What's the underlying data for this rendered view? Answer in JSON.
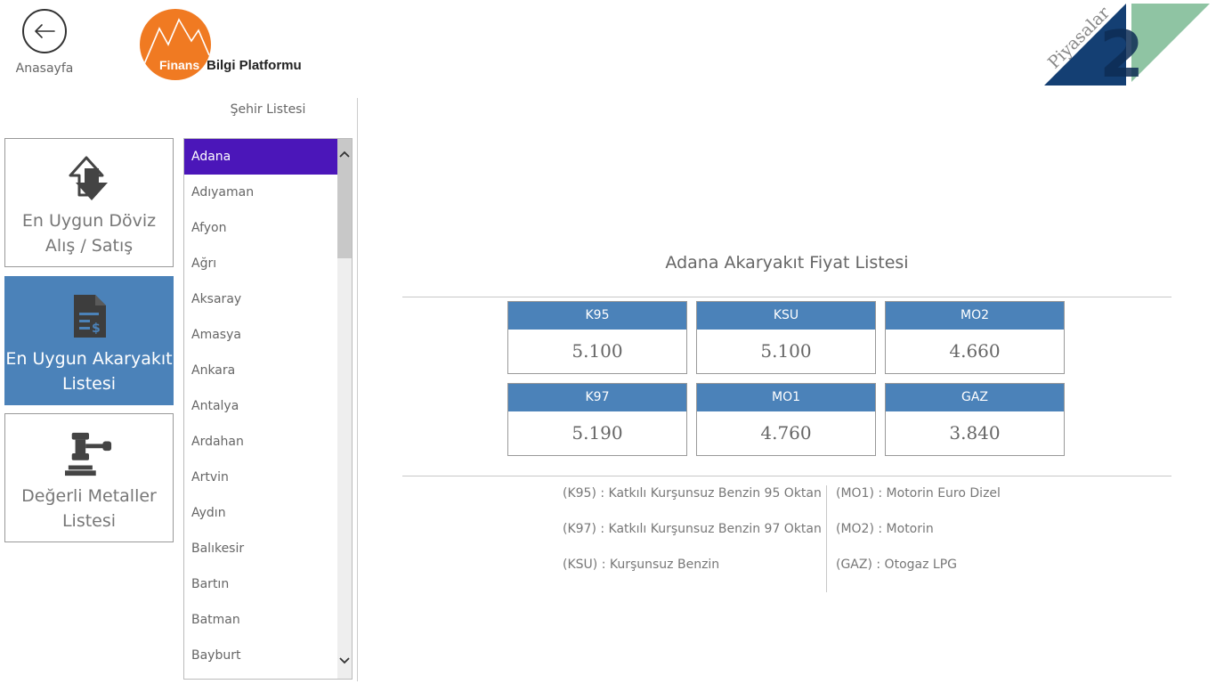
{
  "header": {
    "back_label": "Anasayfa",
    "logo": {
      "primary": "Finans",
      "secondary": "Bilgi Platformu"
    },
    "brand_text": "Piyasalar",
    "brand_number": "2"
  },
  "nav": [
    {
      "label": "En Uygun Döviz\nAlış / Satış",
      "icon": "currency-exchange-icon",
      "active": false
    },
    {
      "label": "En Uygun Akaryakıt\nListesi",
      "icon": "fuel-document-icon",
      "active": true
    },
    {
      "label": "Değerli Metaller\nListesi",
      "icon": "gavel-icon",
      "active": false
    }
  ],
  "city_list": {
    "header": "Şehir Listesi",
    "selected": "Adana",
    "items": [
      "Adana",
      "Adıyaman",
      "Afyon",
      "Ağrı",
      "Aksaray",
      "Amasya",
      "Ankara",
      "Antalya",
      "Ardahan",
      "Artvin",
      "Aydın",
      "Balıkesir",
      "Bartın",
      "Batman",
      "Bayburt"
    ]
  },
  "main": {
    "title": "Adana Akaryakıt Fiyat Listesi",
    "prices": [
      {
        "code": "K95",
        "value": "5.100"
      },
      {
        "code": "KSU",
        "value": "5.100"
      },
      {
        "code": "MO2",
        "value": "4.660"
      },
      {
        "code": "K97",
        "value": "5.190"
      },
      {
        "code": "MO1",
        "value": "4.760"
      },
      {
        "code": "GAZ",
        "value": "3.840"
      }
    ],
    "legend_left": [
      "(K95) : Katkılı Kurşunsuz Benzin 95 Oktan",
      "(K97) : Katkılı Kurşunsuz Benzin 97 Oktan",
      "(KSU) : Kurşunsuz Benzin"
    ],
    "legend_right": [
      "(MO1) : Motorin Euro Dizel",
      "(MO2) : Motorin",
      "(GAZ) : Otogaz LPG"
    ]
  },
  "colors": {
    "accent": "#4b82b9",
    "selection": "#4b16b9",
    "logo_orange": "#f07a22",
    "brand_dark": "#143f73",
    "brand_green": "#8fc4a3"
  }
}
